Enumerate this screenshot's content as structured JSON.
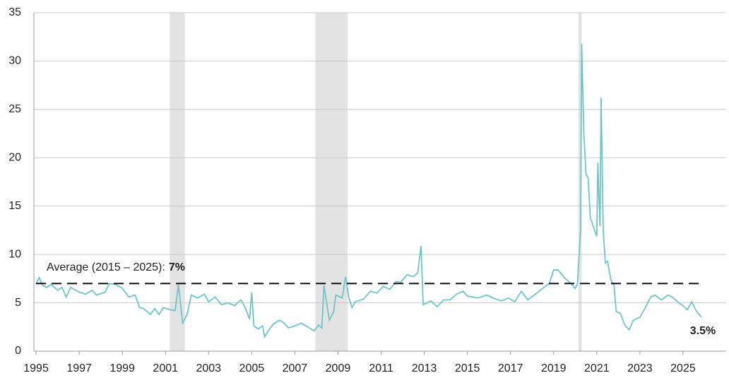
{
  "chart_data": {
    "type": "line",
    "x": [
      1995.0,
      1995.15,
      1995.3,
      1995.5,
      1995.7,
      1996.0,
      1996.2,
      1996.4,
      1996.6,
      1997.0,
      1997.3,
      1997.6,
      1997.8,
      1998.2,
      1998.4,
      1998.7,
      1999.0,
      1999.3,
      1999.6,
      1999.8,
      2000.0,
      2000.3,
      2000.5,
      2000.7,
      2000.9,
      2001.2,
      2001.45,
      2001.6,
      2001.8,
      2002.0,
      2002.2,
      2002.5,
      2002.8,
      2003.0,
      2003.3,
      2003.6,
      2003.9,
      2004.2,
      2004.5,
      2004.7,
      2004.9,
      2005.0,
      2005.1,
      2005.3,
      2005.5,
      2005.6,
      2005.8,
      2006.0,
      2006.3,
      2006.5,
      2006.7,
      2007.0,
      2007.3,
      2007.6,
      2007.9,
      2008.1,
      2008.25,
      2008.35,
      2008.6,
      2008.8,
      2008.9,
      2009.2,
      2009.35,
      2009.5,
      2009.65,
      2009.8,
      2010.2,
      2010.5,
      2010.8,
      2011.1,
      2011.4,
      2011.7,
      2011.9,
      2012.2,
      2012.5,
      2012.7,
      2012.85,
      2012.95,
      2013.3,
      2013.6,
      2013.9,
      2014.2,
      2014.5,
      2014.8,
      2015.0,
      2015.5,
      2015.9,
      2016.3,
      2016.6,
      2016.9,
      2017.2,
      2017.5,
      2017.8,
      2018.1,
      2018.5,
      2018.8,
      2019.0,
      2019.2,
      2019.5,
      2019.8,
      2020.0,
      2020.1,
      2020.25,
      2020.3,
      2020.4,
      2020.5,
      2020.6,
      2020.7,
      2020.9,
      2021.0,
      2021.05,
      2021.1,
      2021.15,
      2021.2,
      2021.3,
      2021.4,
      2021.5,
      2021.65,
      2021.8,
      2021.9,
      2022.1,
      2022.3,
      2022.5,
      2022.7,
      2023.0,
      2023.3,
      2023.5,
      2023.7,
      2024.0,
      2024.3,
      2024.5,
      2024.8,
      2025.0,
      2025.2,
      2025.4,
      2025.6,
      2025.75,
      2025.85
    ],
    "series": [
      {
        "color": "#6cc6c9",
        "values": [
          7.0,
          7.6,
          6.8,
          6.6,
          6.9,
          6.3,
          6.6,
          5.6,
          6.6,
          6.1,
          5.9,
          6.3,
          5.8,
          6.1,
          7.0,
          6.9,
          6.5,
          5.6,
          5.8,
          4.5,
          4.4,
          3.8,
          4.4,
          3.8,
          4.5,
          4.3,
          4.2,
          6.9,
          2.9,
          3.8,
          5.8,
          5.5,
          5.9,
          5.1,
          5.6,
          4.8,
          5.0,
          4.7,
          5.3,
          4.5,
          3.3,
          6.1,
          2.6,
          2.3,
          2.6,
          1.5,
          2.2,
          2.8,
          3.2,
          2.9,
          2.4,
          2.6,
          2.9,
          2.5,
          2.1,
          2.7,
          2.4,
          6.8,
          3.2,
          4.1,
          5.8,
          5.5,
          7.7,
          5.6,
          4.5,
          5.1,
          5.4,
          6.2,
          6.0,
          6.7,
          6.4,
          7.2,
          7.1,
          7.9,
          7.7,
          8.1,
          10.9,
          4.8,
          5.2,
          4.6,
          5.3,
          5.3,
          5.9,
          6.2,
          5.7,
          5.5,
          5.8,
          5.4,
          5.2,
          5.5,
          5.1,
          6.2,
          5.3,
          5.8,
          6.5,
          7.0,
          8.4,
          8.4,
          7.6,
          7.0,
          6.5,
          6.9,
          12.5,
          31.8,
          22.5,
          18.3,
          17.9,
          13.8,
          12.5,
          11.9,
          19.5,
          16.0,
          12.9,
          26.2,
          12.5,
          9.1,
          9.3,
          7.4,
          6.8,
          4.1,
          3.9,
          2.7,
          2.2,
          3.2,
          3.5,
          4.7,
          5.6,
          5.8,
          5.3,
          5.8,
          5.6,
          5.0,
          4.7,
          4.3,
          5.1,
          4.2,
          3.8,
          3.5
        ]
      }
    ],
    "recessions": [
      [
        2001.2,
        2001.9
      ],
      [
        2007.95,
        2009.45
      ],
      [
        2020.15,
        2020.3
      ]
    ],
    "recession_color": "#e3e3e3",
    "average": 7,
    "average_label": "Average (2015 – 2025):",
    "average_value_label": "7%",
    "end_label": "3.5%",
    "xlim": [
      1994.9,
      2027
    ],
    "xticks": [
      1995,
      1997,
      1999,
      2001,
      2003,
      2005,
      2007,
      2009,
      2011,
      2013,
      2015,
      2017,
      2019,
      2021,
      2023,
      2025
    ],
    "ylim": [
      0,
      35
    ],
    "yticks": [
      0,
      5,
      10,
      15,
      20,
      25,
      30,
      35
    ],
    "grid": true
  }
}
